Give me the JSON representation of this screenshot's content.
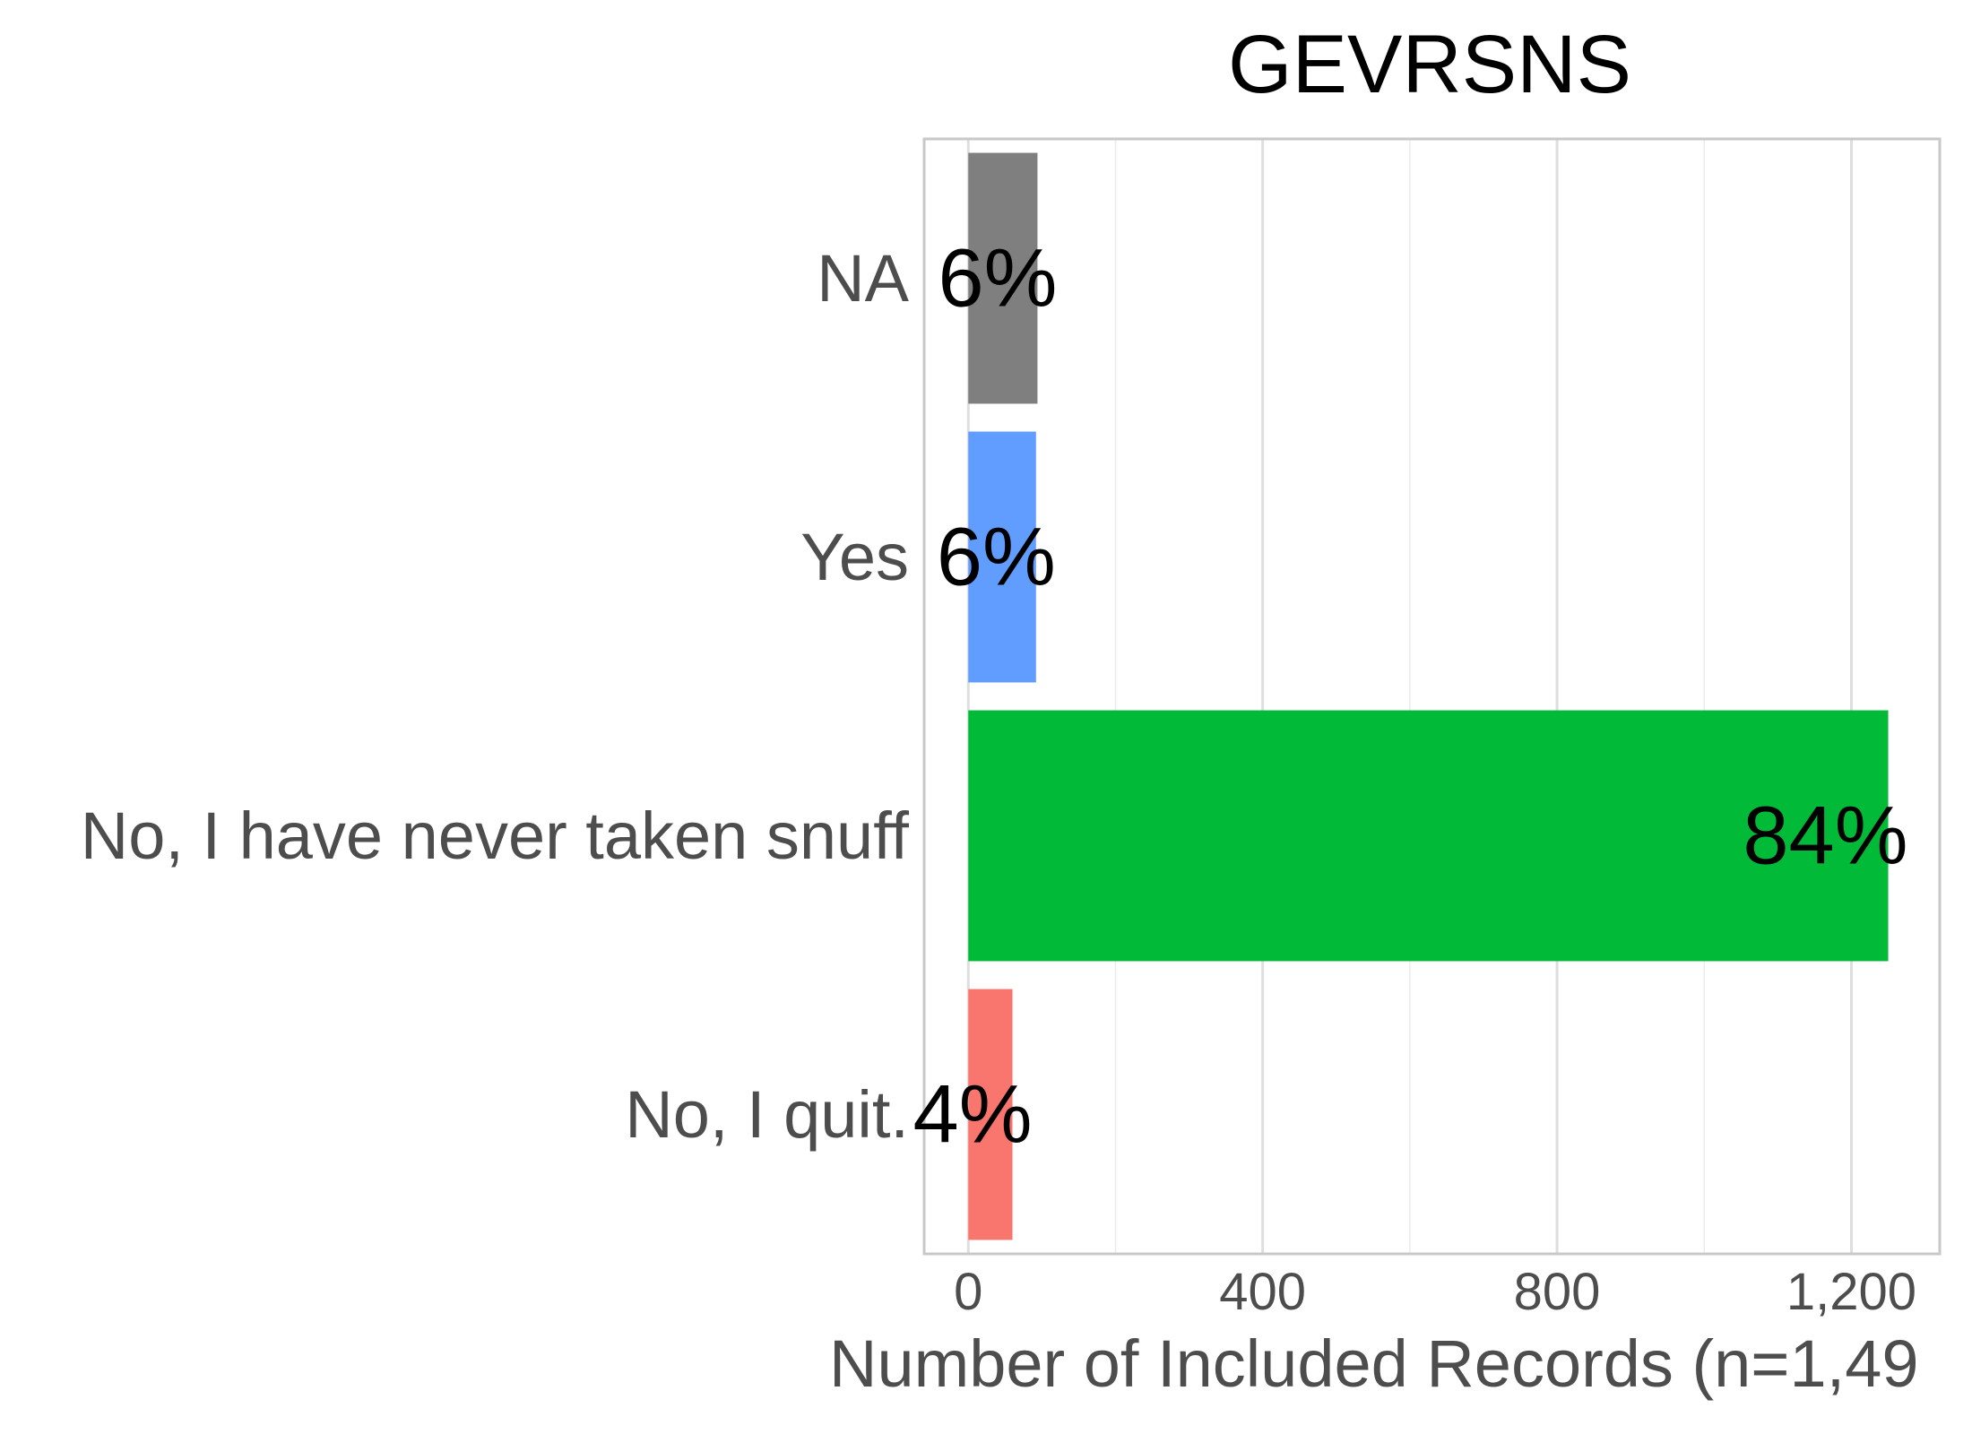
{
  "chart_data": {
    "type": "bar",
    "orientation": "horizontal",
    "title": "GEVRSNS",
    "xlabel": "Number of Included Records (n=1,49",
    "ylabel": "",
    "categories": [
      "NA",
      "Yes",
      "No, I have never taken snuff",
      "No, I quit."
    ],
    "values": [
      94,
      92,
      1250,
      60
    ],
    "labels": [
      "6%",
      "6%",
      "84%",
      "4%"
    ],
    "colors": [
      "#7f7f7f",
      "#619cff",
      "#00ba38",
      "#f8766d"
    ],
    "xlim": [
      -60,
      1320
    ],
    "x_ticks": [
      0,
      400,
      800,
      1200
    ],
    "x_tick_labels": [
      "0",
      "400",
      "800",
      "1,200"
    ],
    "grid": true,
    "legend": "none"
  }
}
